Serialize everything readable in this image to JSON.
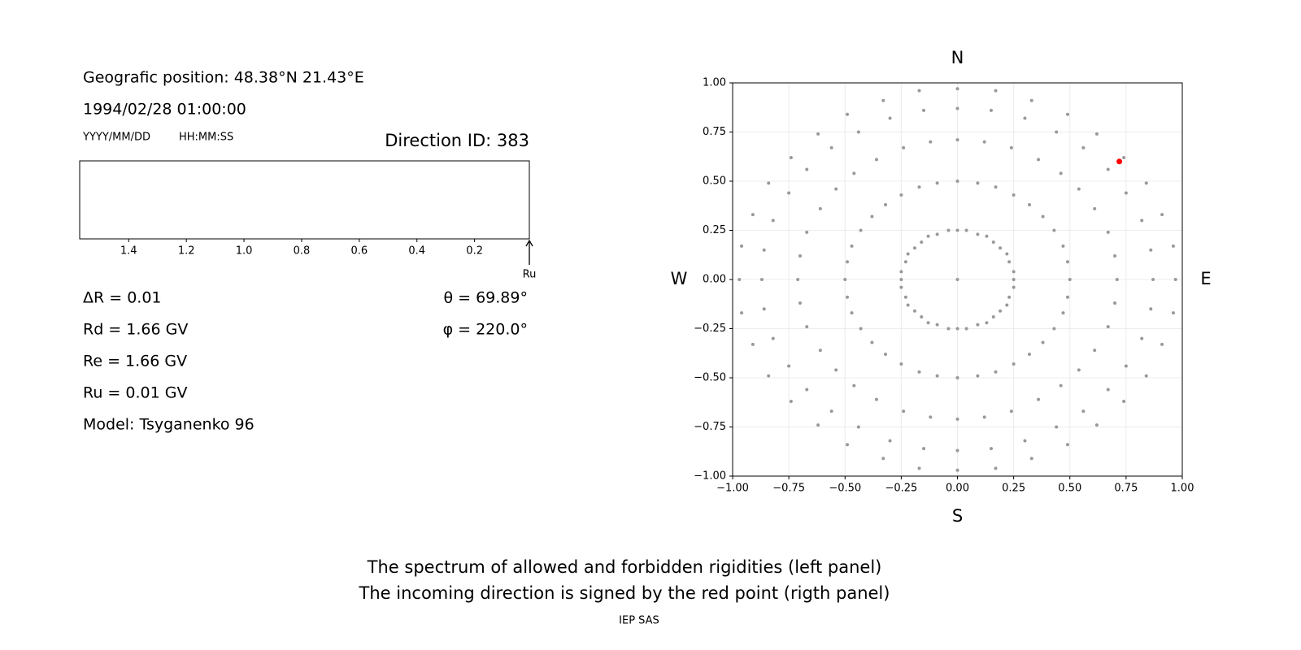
{
  "info": {
    "position": "Geografic position: 48.38°N 21.43°E",
    "datetime": "1994/02/28 01:00:00",
    "date_format": "YYYY/MM/DD",
    "time_format": "HH:MM:SS",
    "direction": "Direction ID: 383",
    "delta_r": "ΔR = 0.01",
    "rd": "Rd = 1.66 GV",
    "re": "Re = 1.66 GV",
    "ru": "Ru = 0.01 GV",
    "model": "Model: Tsyganenko 96",
    "theta": "θ = 69.89°",
    "phi": "φ = 220.0°"
  },
  "chart_data": [
    {
      "type": "spectrum",
      "xlim": [
        1.57,
        0.01
      ],
      "xticks": [
        1.4,
        1.2,
        {
          "value": 1,
          "label": "1.0"
        },
        0.8,
        0.6,
        0.4,
        0.2
      ],
      "arrow_at": 0.01,
      "annotation": "Ru"
    },
    {
      "type": "scatter",
      "north": "N",
      "south": "S",
      "west": "W",
      "east": "E",
      "grid": true,
      "xlim": [
        -1,
        1
      ],
      "ylim": [
        -1,
        1
      ],
      "xticks": [
        {
          "value": -1,
          "label": "−1.00"
        },
        {
          "value": -0.75,
          "label": "−0.75"
        },
        {
          "value": -0.5,
          "label": "−0.50"
        },
        {
          "value": -0.25,
          "label": "−0.25"
        },
        {
          "value": 0,
          "label": "0.00"
        },
        {
          "value": 0.25,
          "label": "0.25"
        },
        {
          "value": 0.5,
          "label": "0.50"
        },
        {
          "value": 0.75,
          "label": "0.75"
        },
        {
          "value": 1,
          "label": "1.00"
        }
      ],
      "yticks": [
        {
          "value": -1,
          "label": "−1.00"
        },
        {
          "value": -0.75,
          "label": "−0.75"
        },
        {
          "value": -0.5,
          "label": "−0.50"
        },
        {
          "value": -0.25,
          "label": "−0.25"
        },
        {
          "value": 0,
          "label": "0.00"
        },
        {
          "value": 0.25,
          "label": "0.25"
        },
        {
          "value": 0.5,
          "label": "0.50"
        },
        {
          "value": 0.75,
          "label": "0.75"
        },
        {
          "value": 1,
          "label": "1.00"
        }
      ],
      "series": [
        {
          "color": "#999999",
          "x": [
            0.25,
            0.5,
            0.71,
            0.87,
            0.97,
            0.25,
            0.49,
            0.7,
            0.86,
            0.96,
            0.23,
            0.47,
            0.67,
            0.82,
            0.91,
            0.22,
            0.43,
            0.61,
            0.75,
            0.84,
            0.19,
            0.38,
            0.54,
            0.67,
            0.74,
            0.16,
            0.32,
            0.46,
            0.56,
            0.62,
            0.13,
            0.25,
            0.36,
            0.44,
            0.49,
            0.09,
            0.17,
            0.24,
            0.3,
            0.33,
            0.04,
            0.09,
            0.12,
            0.15,
            0.17,
            0,
            0,
            0,
            0,
            0,
            -0.04,
            -0.09,
            -0.12,
            -0.15,
            -0.17,
            -0.09,
            -0.17,
            -0.24,
            -0.3,
            -0.33,
            -0.13,
            -0.25,
            -0.36,
            -0.44,
            -0.49,
            -0.16,
            -0.32,
            -0.46,
            -0.56,
            -0.62,
            -0.19,
            -0.38,
            -0.54,
            -0.67,
            -0.74,
            -0.22,
            -0.43,
            -0.61,
            -0.75,
            -0.84,
            -0.23,
            -0.47,
            -0.67,
            -0.82,
            -0.91,
            -0.25,
            -0.49,
            -0.7,
            -0.86,
            -0.96,
            -0.25,
            -0.5,
            -0.71,
            -0.87,
            -0.97,
            -0.25,
            -0.49,
            -0.7,
            -0.86,
            -0.96,
            -0.23,
            -0.47,
            -0.67,
            -0.82,
            -0.91,
            -0.22,
            -0.43,
            -0.61,
            -0.75,
            -0.84,
            -0.19,
            -0.38,
            -0.54,
            -0.67,
            -0.74,
            -0.16,
            -0.32,
            -0.46,
            -0.56,
            -0.62,
            -0.13,
            -0.25,
            -0.36,
            -0.44,
            -0.49,
            -0.09,
            -0.17,
            -0.24,
            -0.3,
            -0.33,
            -0.04,
            -0.09,
            -0.12,
            -0.15,
            -0.17,
            0,
            0,
            0,
            0,
            0,
            0.04,
            0.09,
            0.12,
            0.15,
            0.17,
            0.09,
            0.17,
            0.24,
            0.3,
            0.33,
            0.13,
            0.25,
            0.36,
            0.44,
            0.49,
            0.16,
            0.32,
            0.46,
            0.56,
            0.62,
            0.19,
            0.38,
            0.54,
            0.67,
            0.74,
            0.22,
            0.43,
            0.61,
            0.75,
            0.84,
            0.23,
            0.47,
            0.67,
            0.82,
            0.91,
            0.25,
            0.49,
            0.7,
            0.86,
            0.96,
            0
          ],
          "y": [
            0,
            0,
            0,
            0,
            0,
            0.04,
            0.09,
            0.12,
            0.15,
            0.17,
            0.09,
            0.17,
            0.24,
            0.3,
            0.33,
            0.13,
            0.25,
            0.36,
            0.44,
            0.49,
            0.16,
            0.32,
            0.46,
            0.56,
            0.62,
            0.19,
            0.38,
            0.54,
            0.67,
            0.74,
            0.22,
            0.43,
            0.61,
            0.75,
            0.84,
            0.23,
            0.47,
            0.67,
            0.82,
            0.91,
            0.25,
            0.49,
            0.7,
            0.86,
            0.96,
            0.25,
            0.5,
            0.71,
            0.87,
            0.97,
            0.25,
            0.49,
            0.7,
            0.86,
            0.96,
            0.23,
            0.47,
            0.67,
            0.82,
            0.91,
            0.22,
            0.43,
            0.61,
            0.75,
            0.84,
            0.19,
            0.38,
            0.54,
            0.67,
            0.74,
            0.16,
            0.32,
            0.46,
            0.56,
            0.62,
            0.13,
            0.25,
            0.36,
            0.44,
            0.49,
            0.09,
            0.17,
            0.24,
            0.3,
            0.33,
            0.04,
            0.09,
            0.12,
            0.15,
            0.17,
            0,
            0,
            0,
            0,
            0,
            -0.04,
            -0.09,
            -0.12,
            -0.15,
            -0.17,
            -0.09,
            -0.17,
            -0.24,
            -0.3,
            -0.33,
            -0.13,
            -0.25,
            -0.36,
            -0.44,
            -0.49,
            -0.16,
            -0.32,
            -0.46,
            -0.56,
            -0.62,
            -0.19,
            -0.38,
            -0.54,
            -0.67,
            -0.74,
            -0.22,
            -0.43,
            -0.61,
            -0.75,
            -0.84,
            -0.23,
            -0.47,
            -0.67,
            -0.82,
            -0.91,
            -0.25,
            -0.49,
            -0.7,
            -0.86,
            -0.96,
            -0.25,
            -0.5,
            -0.71,
            -0.87,
            -0.97,
            -0.25,
            -0.49,
            -0.7,
            -0.86,
            -0.96,
            -0.23,
            -0.47,
            -0.67,
            -0.82,
            -0.91,
            -0.22,
            -0.43,
            -0.61,
            -0.75,
            -0.84,
            -0.19,
            -0.38,
            -0.54,
            -0.67,
            -0.74,
            -0.16,
            -0.32,
            -0.46,
            -0.56,
            -0.62,
            -0.13,
            -0.25,
            -0.36,
            -0.44,
            -0.49,
            -0.09,
            -0.17,
            -0.24,
            -0.3,
            -0.33,
            -0.04,
            -0.09,
            -0.12,
            -0.15,
            -0.17,
            0
          ]
        },
        {
          "color": "#ff0000",
          "x": [
            0.72
          ],
          "y": [
            0.6
          ]
        }
      ]
    }
  ],
  "caption": [
    "The spectrum of allowed and forbidden rigidities (left panel)",
    "The incoming direction is signed by the red point (rigth panel)"
  ],
  "footer": "IEP SAS"
}
